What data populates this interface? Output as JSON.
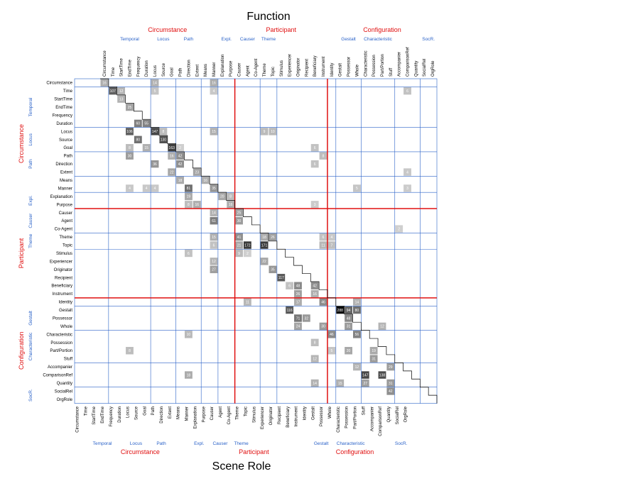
{
  "chart_data": {
    "type": "heatmap",
    "x_label": "Function",
    "y_label": "Scene Role",
    "categories": [
      "Circumstance",
      "Time",
      "StartTime",
      "EndTime",
      "Frequency",
      "Duration",
      "Locus",
      "Source",
      "Goal",
      "Path",
      "Direction",
      "Extent",
      "Means",
      "Manner",
      "Explanation",
      "Purpose",
      "Causer",
      "Agent",
      "Co-Agent",
      "Theme",
      "Topic",
      "Stimulus",
      "Experiencer",
      "Originator",
      "Recipient",
      "Beneficiary",
      "Instrument",
      "Identity",
      "Gestalt",
      "Possessor",
      "Whole",
      "Characteristic",
      "Possession",
      "Part/Portion",
      "Stuff",
      "Accompanier",
      "ComparisonRef",
      "Quantity",
      "SocialRel",
      "OrgRole"
    ],
    "groups": [
      {
        "name": "Circumstance",
        "subgroups": [
          "Temporal",
          "Locus",
          "Path",
          "Expl."
        ]
      },
      {
        "name": "Participant",
        "subgroups": [
          "Causer",
          "Theme"
        ]
      },
      {
        "name": "Configuration",
        "subgroups": [
          "Gestalt",
          "Characteristic",
          "SocR."
        ]
      }
    ],
    "cells": [
      [
        0,
        0,
        16
      ],
      [
        0,
        6,
        14
      ],
      [
        0,
        13,
        16
      ],
      [
        1,
        1,
        107
      ],
      [
        1,
        2,
        12
      ],
      [
        1,
        6,
        5
      ],
      [
        1,
        13,
        4
      ],
      [
        1,
        36,
        6
      ],
      [
        2,
        2,
        13
      ],
      [
        3,
        3,
        25
      ],
      [
        5,
        4,
        60
      ],
      [
        5,
        5,
        55
      ],
      [
        6,
        3,
        106
      ],
      [
        6,
        6,
        147
      ],
      [
        6,
        7,
        8
      ],
      [
        6,
        13,
        15
      ],
      [
        6,
        19,
        9
      ],
      [
        6,
        20,
        10
      ],
      [
        7,
        4,
        80
      ],
      [
        7,
        7,
        130
      ],
      [
        8,
        3,
        8
      ],
      [
        8,
        5,
        15
      ],
      [
        8,
        8,
        163
      ],
      [
        8,
        9,
        2
      ],
      [
        8,
        25,
        6
      ],
      [
        9,
        3,
        30
      ],
      [
        9,
        8,
        16
      ],
      [
        9,
        9,
        42
      ],
      [
        9,
        26,
        8
      ],
      [
        10,
        6,
        36
      ],
      [
        10,
        9,
        42
      ],
      [
        10,
        25,
        6
      ],
      [
        11,
        8,
        22
      ],
      [
        11,
        11,
        23
      ],
      [
        11,
        36,
        4
      ],
      [
        12,
        9,
        18
      ],
      [
        12,
        12,
        16
      ],
      [
        13,
        3,
        4
      ],
      [
        13,
        5,
        4
      ],
      [
        13,
        6,
        4
      ],
      [
        13,
        10,
        81
      ],
      [
        13,
        13,
        35
      ],
      [
        13,
        30,
        5
      ],
      [
        13,
        36,
        3
      ],
      [
        14,
        10,
        19
      ],
      [
        14,
        14,
        20
      ],
      [
        14,
        15,
        8
      ],
      [
        15,
        10,
        8
      ],
      [
        15,
        11,
        16
      ],
      [
        15,
        15,
        16
      ],
      [
        15,
        25,
        3
      ],
      [
        16,
        13,
        14
      ],
      [
        16,
        16,
        25
      ],
      [
        17,
        13,
        61
      ],
      [
        17,
        16,
        30
      ],
      [
        18,
        35,
        2
      ],
      [
        19,
        13,
        15
      ],
      [
        19,
        16,
        41
      ],
      [
        19,
        19,
        18
      ],
      [
        19,
        20,
        26
      ],
      [
        19,
        26,
        6
      ],
      [
        19,
        27,
        4
      ],
      [
        20,
        13,
        6
      ],
      [
        20,
        16,
        21
      ],
      [
        20,
        17,
        172
      ],
      [
        20,
        19,
        171
      ],
      [
        20,
        26,
        11
      ],
      [
        20,
        27,
        7
      ],
      [
        21,
        10,
        6
      ],
      [
        21,
        16,
        9
      ],
      [
        21,
        17,
        2
      ],
      [
        22,
        13,
        12
      ],
      [
        22,
        19,
        22
      ],
      [
        23,
        13,
        27
      ],
      [
        23,
        20,
        35
      ],
      [
        24,
        21,
        117
      ],
      [
        25,
        22,
        6
      ],
      [
        25,
        23,
        48
      ],
      [
        25,
        25,
        42
      ],
      [
        26,
        23,
        26
      ],
      [
        26,
        25,
        16
      ],
      [
        27,
        17,
        11
      ],
      [
        27,
        23,
        17
      ],
      [
        27,
        26,
        46
      ],
      [
        27,
        30,
        14
      ],
      [
        28,
        22,
        116
      ],
      [
        28,
        28,
        288
      ],
      [
        28,
        29,
        94
      ],
      [
        28,
        30,
        80
      ],
      [
        29,
        23,
        71
      ],
      [
        29,
        24,
        32
      ],
      [
        29,
        29,
        48
      ],
      [
        30,
        23,
        24
      ],
      [
        30,
        26,
        30
      ],
      [
        30,
        29,
        31
      ],
      [
        30,
        33,
        12
      ],
      [
        31,
        10,
        10
      ],
      [
        31,
        27,
        46
      ],
      [
        31,
        30,
        56
      ],
      [
        32,
        25,
        8
      ],
      [
        33,
        3,
        8
      ],
      [
        33,
        27,
        5
      ],
      [
        33,
        29,
        20
      ],
      [
        33,
        32,
        19
      ],
      [
        34,
        25,
        12
      ],
      [
        34,
        32,
        31
      ],
      [
        35,
        30,
        12
      ],
      [
        35,
        34,
        29
      ],
      [
        36,
        10,
        18
      ],
      [
        36,
        31,
        147
      ],
      [
        36,
        33,
        138
      ],
      [
        37,
        25,
        14
      ],
      [
        37,
        28,
        15
      ],
      [
        37,
        31,
        27
      ],
      [
        37,
        34,
        31
      ],
      [
        38,
        34,
        42
      ]
    ]
  }
}
